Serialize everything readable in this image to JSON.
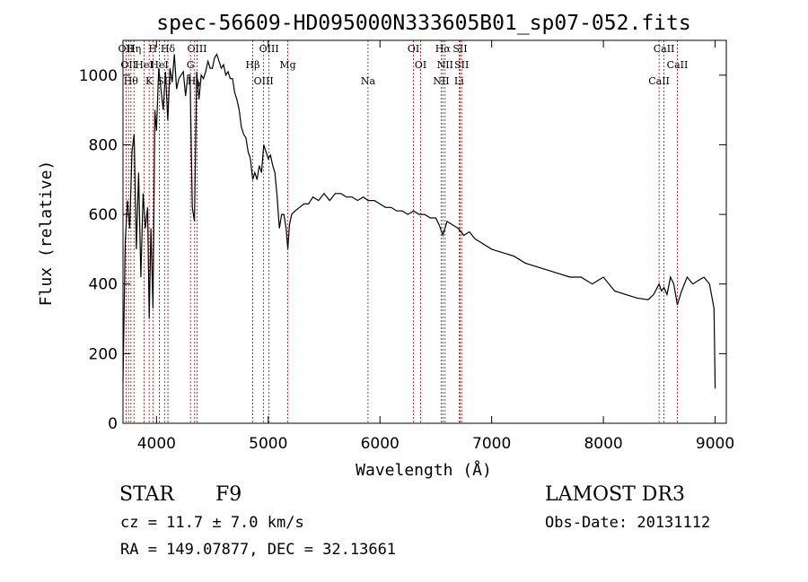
{
  "chart_data": {
    "type": "line",
    "title": "spec-56609-HD095000N333605B01_sp07-052.fits",
    "xlabel": "Wavelength (Å)",
    "ylabel": "Flux (relative)",
    "xlim": [
      3700,
      9100
    ],
    "ylim": [
      0,
      1100
    ],
    "x_ticks": [
      4000,
      5000,
      6000,
      7000,
      8000,
      9000
    ],
    "y_ticks": [
      0,
      200,
      400,
      600,
      800,
      1000
    ],
    "grid": false,
    "series": [
      {
        "x": [
          3700,
          3720,
          3740,
          3760,
          3780,
          3800,
          3820,
          3840,
          3860,
          3880,
          3900,
          3920,
          3935,
          3950,
          3968,
          3985,
          4000,
          4020,
          4040,
          4060,
          4080,
          4101,
          4120,
          4140,
          4160,
          4180,
          4200,
          4220,
          4240,
          4260,
          4280,
          4300,
          4320,
          4340,
          4360,
          4380,
          4400,
          4420,
          4440,
          4460,
          4480,
          4500,
          4520,
          4540,
          4560,
          4580,
          4600,
          4620,
          4640,
          4660,
          4680,
          4700,
          4720,
          4740,
          4760,
          4780,
          4800,
          4820,
          4840,
          4861,
          4880,
          4900,
          4920,
          4940,
          4960,
          4980,
          5000,
          5020,
          5040,
          5060,
          5080,
          5100,
          5120,
          5140,
          5160,
          5175,
          5190,
          5210,
          5240,
          5280,
          5320,
          5360,
          5400,
          5450,
          5500,
          5550,
          5600,
          5650,
          5700,
          5750,
          5800,
          5850,
          5893,
          5950,
          6000,
          6050,
          6100,
          6150,
          6200,
          6250,
          6300,
          6350,
          6400,
          6450,
          6500,
          6530,
          6563,
          6600,
          6650,
          6700,
          6750,
          6800,
          6850,
          6900,
          6950,
          7000,
          7100,
          7200,
          7300,
          7400,
          7500,
          7600,
          7700,
          7800,
          7900,
          8000,
          8100,
          8200,
          8300,
          8400,
          8450,
          8498,
          8520,
          8542,
          8570,
          8600,
          8630,
          8662,
          8700,
          8750,
          8800,
          8850,
          8900,
          8950,
          8990,
          9000
        ],
        "values": [
          120,
          520,
          640,
          560,
          780,
          830,
          500,
          720,
          420,
          660,
          560,
          620,
          300,
          560,
          330,
          900,
          840,
          1020,
          960,
          900,
          1010,
          870,
          1020,
          980,
          1060,
          960,
          990,
          1000,
          1010,
          940,
          1000,
          1000,
          620,
          580,
          1010,
          930,
          1000,
          990,
          1010,
          1040,
          1020,
          1020,
          1050,
          1060,
          1040,
          1020,
          1030,
          1000,
          1010,
          990,
          990,
          950,
          930,
          900,
          850,
          830,
          820,
          780,
          760,
          700,
          720,
          700,
          740,
          720,
          800,
          780,
          760,
          770,
          740,
          720,
          650,
          560,
          600,
          600,
          560,
          500,
          570,
          600,
          610,
          620,
          630,
          630,
          650,
          640,
          660,
          640,
          660,
          660,
          650,
          650,
          640,
          650,
          640,
          640,
          630,
          620,
          620,
          610,
          610,
          600,
          610,
          600,
          600,
          590,
          590,
          570,
          540,
          580,
          570,
          560,
          540,
          550,
          530,
          520,
          510,
          500,
          490,
          480,
          460,
          450,
          440,
          430,
          420,
          420,
          400,
          420,
          380,
          370,
          360,
          355,
          370,
          400,
          380,
          390,
          370,
          420,
          400,
          340,
          380,
          420,
          400,
          410,
          420,
          400,
          330,
          100
        ]
      }
    ],
    "lines": [
      {
        "x": 3727,
        "label": "OII"
      },
      {
        "x": 3750,
        "label": "OII"
      },
      {
        "x": 3771,
        "label": "Hθ"
      },
      {
        "x": 3798,
        "label": "Hη"
      },
      {
        "x": 3889,
        "label": "HeI"
      },
      {
        "x": 3934,
        "label": "K"
      },
      {
        "x": 3968,
        "label": "H"
      },
      {
        "x": 4026,
        "label": "HeI"
      },
      {
        "x": 4072,
        "label": "SII"
      },
      {
        "x": 4102,
        "label": "Hδ"
      },
      {
        "x": 4304,
        "label": "G"
      },
      {
        "x": 4341,
        "label": "Hγ"
      },
      {
        "x": 4363,
        "label": "OIII"
      },
      {
        "x": 4861,
        "label": "Hβ"
      },
      {
        "x": 4959,
        "label": "OIII"
      },
      {
        "x": 5007,
        "label": "OIII"
      },
      {
        "x": 5175,
        "label": "Mg"
      },
      {
        "x": 5893,
        "label": "Na"
      },
      {
        "x": 6300,
        "label": "OI"
      },
      {
        "x": 6364,
        "label": "OI"
      },
      {
        "x": 6548,
        "label": "NII"
      },
      {
        "x": 6563,
        "label": "Hα"
      },
      {
        "x": 6583,
        "label": "NII"
      },
      {
        "x": 6708,
        "label": "Li"
      },
      {
        "x": 6717,
        "label": "SII"
      },
      {
        "x": 6731,
        "label": "SII"
      },
      {
        "x": 8498,
        "label": "CaII"
      },
      {
        "x": 8542,
        "label": "CaII"
      },
      {
        "x": 8662,
        "label": "CaII"
      }
    ]
  },
  "footer": {
    "object_class": "STAR",
    "subclass": "F9",
    "survey": "LAMOST DR3",
    "redshift": "cz = 11.7 ± 7.0 km/s",
    "obs_date": "Obs-Date: 20131112",
    "coords": "RA = 149.07877, DEC =  32.13661"
  }
}
